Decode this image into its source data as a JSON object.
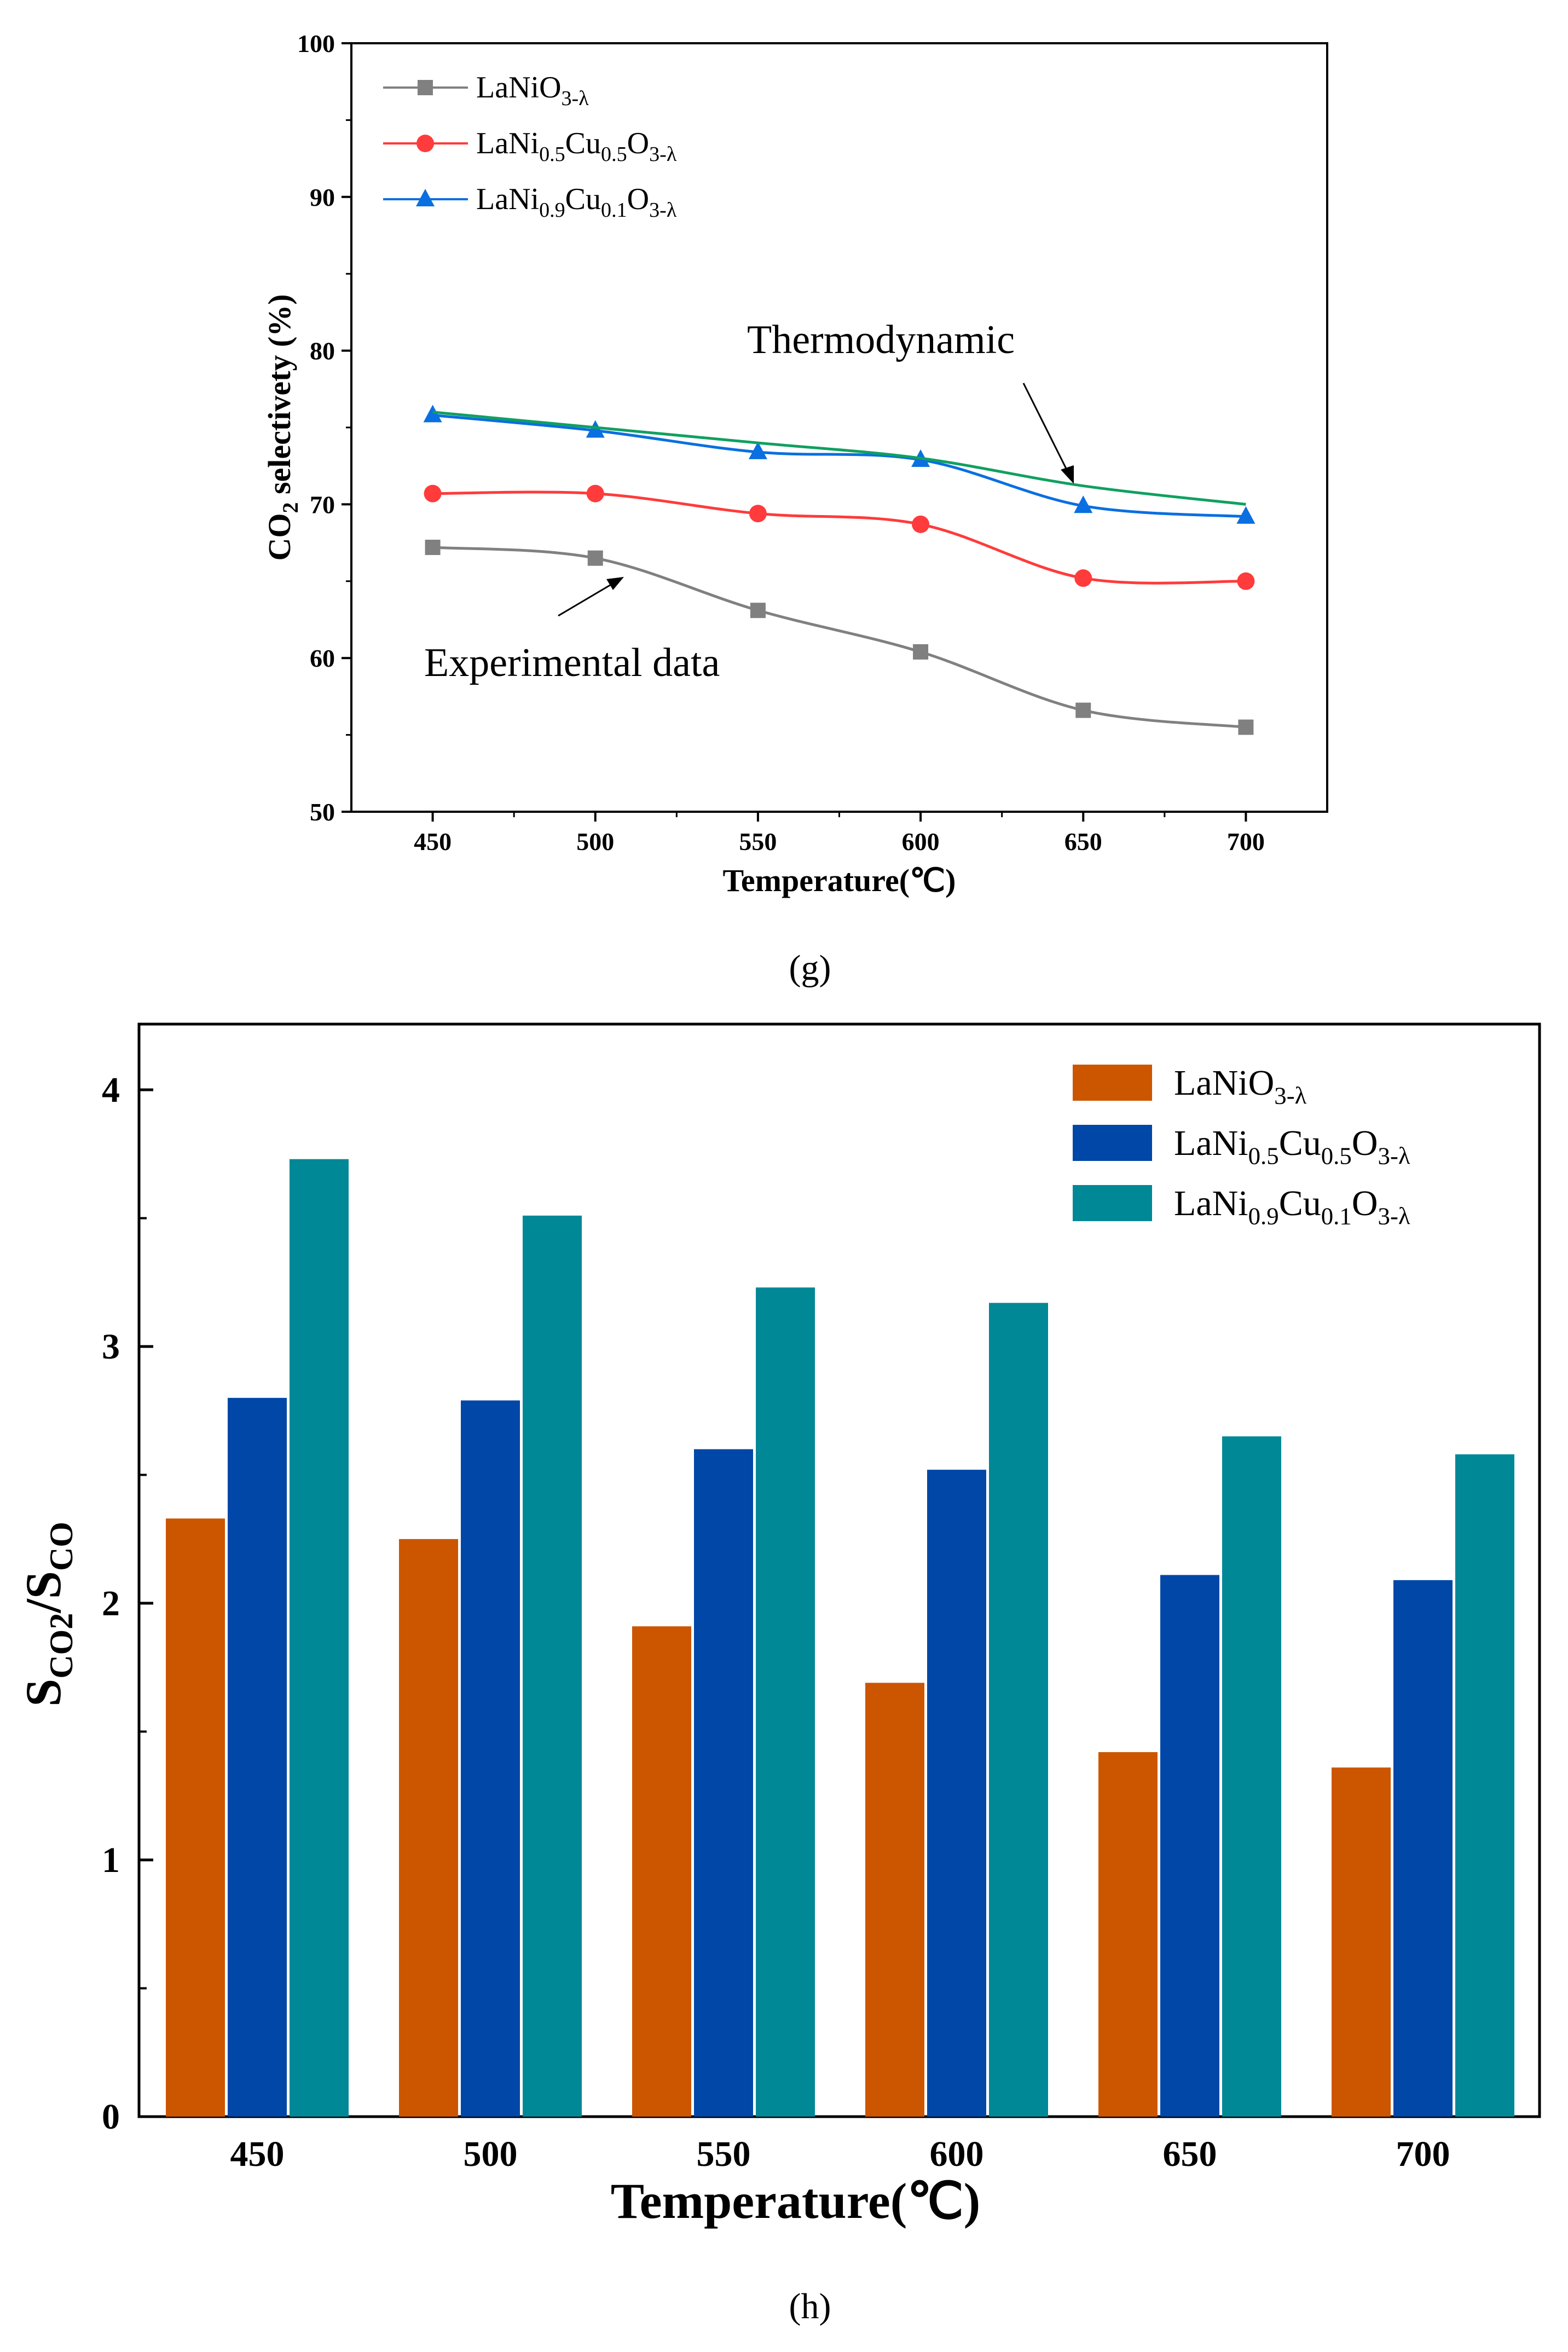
{
  "chart_data": [
    {
      "panel_label": "(g)",
      "type": "line",
      "xlabel": "Temperature(℃)",
      "ylabel": "CO2 selectivety (%)",
      "ylabel_parts": [
        "CO",
        "2",
        " selectivety (%)"
      ],
      "x": [
        450,
        500,
        550,
        600,
        650,
        700
      ],
      "xlim": [
        425,
        725
      ],
      "ylim": [
        50,
        100
      ],
      "xticks": [
        450,
        500,
        550,
        600,
        650,
        700
      ],
      "yticks": [
        50,
        60,
        70,
        80,
        90,
        100
      ],
      "grid": false,
      "legend_placement": "top-left",
      "series": [
        {
          "name": "LaNiO3-λ",
          "name_parts": [
            [
              "LaNiO",
              ""
            ],
            [
              "3-λ",
              "sub"
            ]
          ],
          "color": "#808080",
          "marker": "square",
          "values": [
            67.2,
            66.5,
            63.1,
            60.4,
            56.6,
            55.5
          ]
        },
        {
          "name": "LaNi0.5Cu0.5O3-λ",
          "name_parts": [
            [
              "LaNi",
              ""
            ],
            [
              "0.5",
              "sub"
            ],
            [
              "Cu",
              ""
            ],
            [
              "0.5",
              "sub"
            ],
            [
              "O",
              ""
            ],
            [
              "3-λ",
              "sub"
            ]
          ],
          "color": "#ff3b3b",
          "marker": "circle",
          "values": [
            70.7,
            70.7,
            69.4,
            68.7,
            65.2,
            65.0
          ]
        },
        {
          "name": "LaNi0.9Cu0.1O3-λ",
          "name_parts": [
            [
              "LaNi",
              ""
            ],
            [
              "0.9",
              "sub"
            ],
            [
              "Cu",
              ""
            ],
            [
              "0.1",
              "sub"
            ],
            [
              "O",
              ""
            ],
            [
              "3-λ",
              "sub"
            ]
          ],
          "color": "#0a6fe0",
          "marker": "triangle",
          "values": [
            75.8,
            74.8,
            73.4,
            72.9,
            69.9,
            69.2
          ]
        },
        {
          "name": "Thermodynamic",
          "color": "#10a060",
          "marker": "none",
          "values": [
            76.0,
            75.0,
            74.0,
            73.0,
            71.2,
            70.0
          ]
        }
      ],
      "annotations": [
        {
          "text": "Thermodynamic",
          "at": [
            650,
            71.2
          ]
        },
        {
          "text": "Experimental data",
          "at": [
            500,
            66.3
          ]
        }
      ]
    },
    {
      "panel_label": "(h)",
      "type": "bar",
      "xlabel": "Temperature(℃)",
      "ylabel_parts": [
        "S",
        "CO2",
        "/S",
        "CO"
      ],
      "ylabel": "SCO2/SCO",
      "categories": [
        "450",
        "500",
        "550",
        "600",
        "650",
        "700"
      ],
      "ylim": [
        0,
        4.256
      ],
      "yticks": [
        0,
        1,
        2,
        3,
        4
      ],
      "grid": false,
      "legend_placement": "top-right",
      "series": [
        {
          "name": "LaNiO3-λ",
          "name_parts": [
            [
              "LaNiO",
              ""
            ],
            [
              "3-λ",
              "sub"
            ]
          ],
          "color": "#cc5500",
          "values": [
            2.33,
            2.25,
            1.91,
            1.69,
            1.42,
            1.36
          ]
        },
        {
          "name": "LaNi0.5Cu0.5O3-λ",
          "name_parts": [
            [
              "LaNi",
              ""
            ],
            [
              "0.5",
              "sub"
            ],
            [
              "Cu",
              ""
            ],
            [
              "0.5",
              "sub"
            ],
            [
              "O",
              ""
            ],
            [
              "3-λ",
              "sub"
            ]
          ],
          "color": "#0047a8",
          "values": [
            2.8,
            2.79,
            2.6,
            2.52,
            2.11,
            2.09
          ]
        },
        {
          "name": "LaNi0.9Cu0.1O3-λ",
          "name_parts": [
            [
              "LaNi",
              ""
            ],
            [
              "0.9",
              "sub"
            ],
            [
              "Cu",
              ""
            ],
            [
              "0.1",
              "sub"
            ],
            [
              "O",
              ""
            ],
            [
              "3-λ",
              "sub"
            ]
          ],
          "color": "#008896",
          "values": [
            3.73,
            3.51,
            3.23,
            3.17,
            2.65,
            2.58
          ]
        }
      ]
    }
  ]
}
